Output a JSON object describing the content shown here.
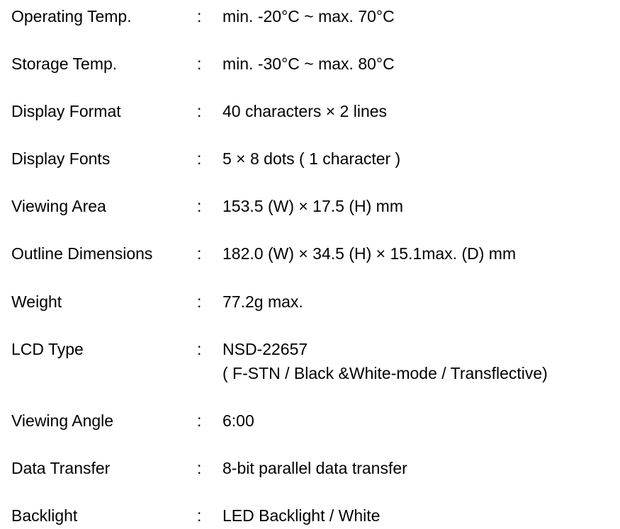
{
  "specs": [
    {
      "label": "Operating Temp.",
      "colon": ":",
      "value": "min. -20°C ~ max. 70°C"
    },
    {
      "label": "Storage Temp.",
      "colon": ":",
      "value": "min. -30°C ~ max. 80°C"
    },
    {
      "label": "Display Format",
      "colon": ":",
      "value": "40 characters × 2 lines"
    },
    {
      "label": "Display Fonts",
      "colon": ":",
      "value": "5 × 8 dots ( 1 character )"
    },
    {
      "label": "Viewing Area",
      "colon": ":",
      "value": "153.5 (W) × 17.5 (H) mm"
    },
    {
      "label": "Outline Dimensions",
      "colon": ":",
      "value": "182.0 (W) × 34.5 (H) × 15.1max. (D) mm"
    },
    {
      "label": "Weight",
      "colon": ":",
      "value": "77.2g max."
    },
    {
      "label": "LCD Type",
      "colon": ":",
      "value": "NSD-22657",
      "value_line2": "( F-STN / Black &White-mode / Transflective)"
    },
    {
      "label": "Viewing Angle",
      "colon": ":",
      "value": "6:00"
    },
    {
      "label": "Data Transfer",
      "colon": ":",
      "value": "8-bit parallel data transfer"
    },
    {
      "label": "Backlight",
      "colon": ":",
      "value": "LED Backlight / White"
    }
  ]
}
